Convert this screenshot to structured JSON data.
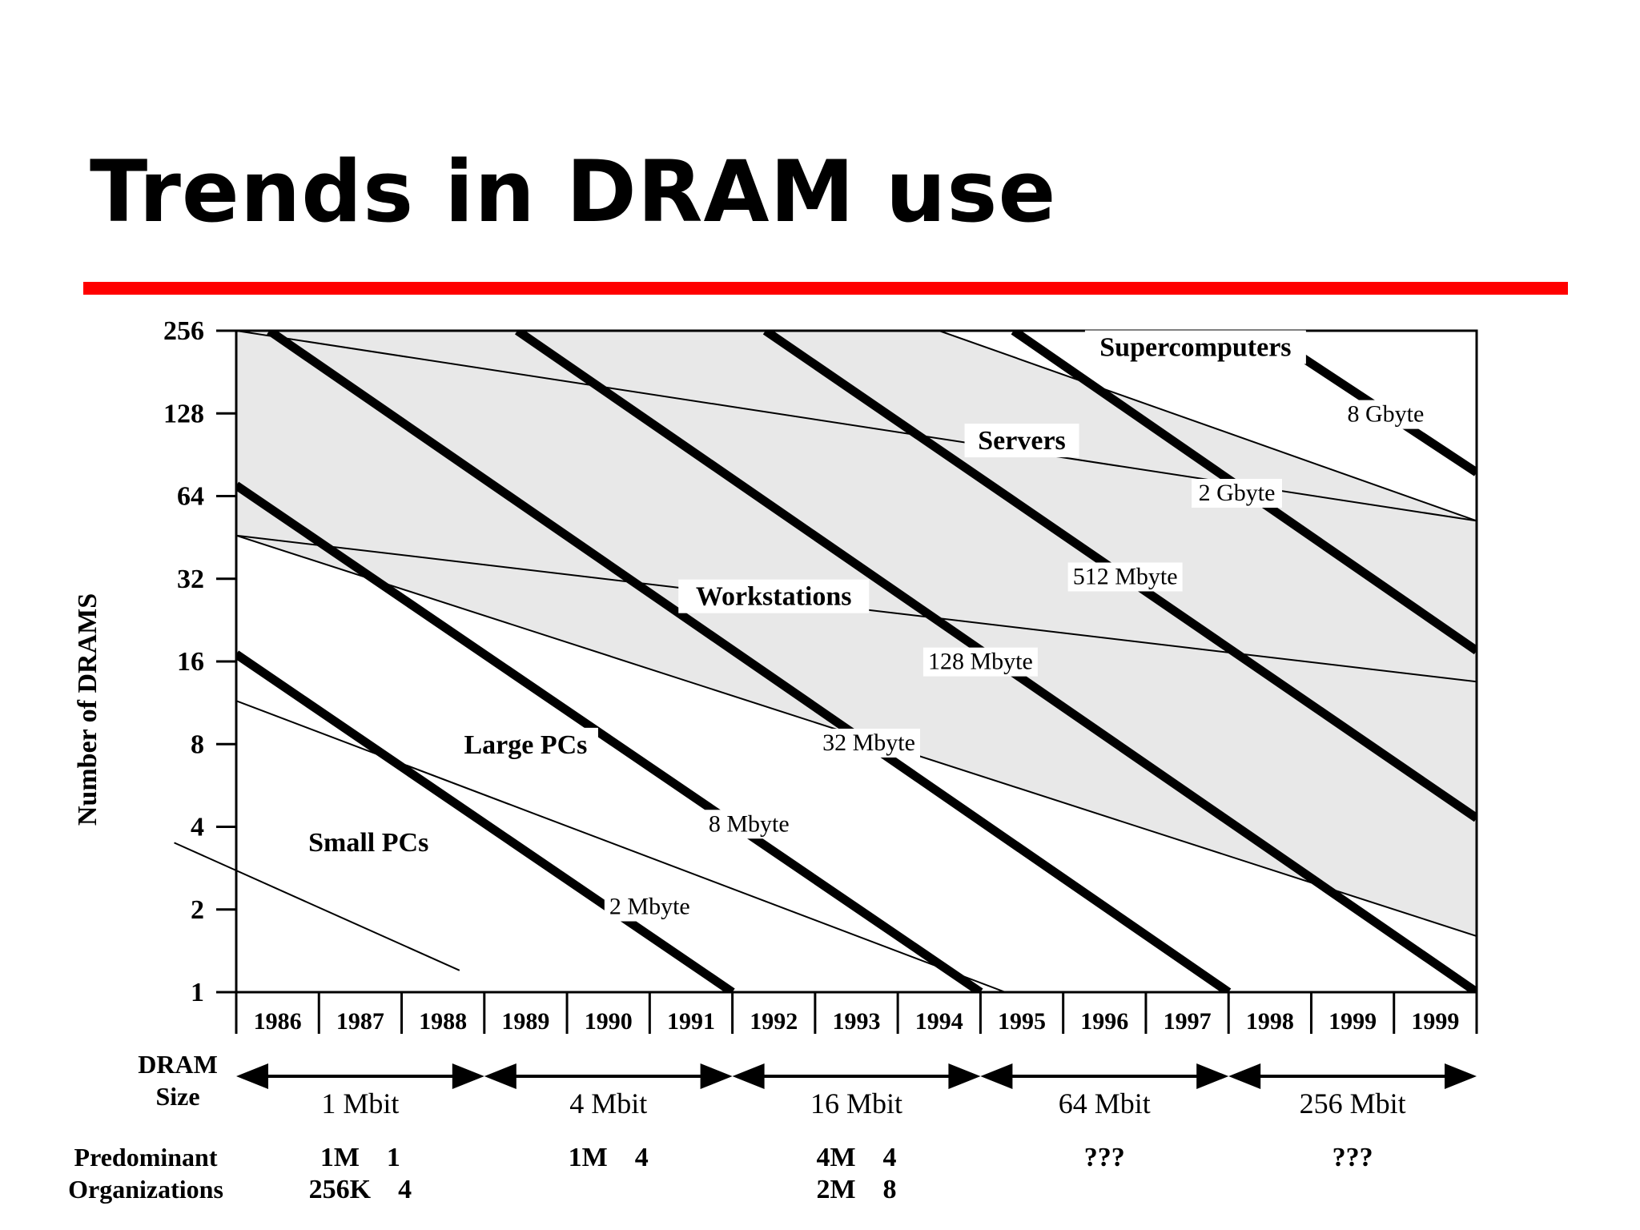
{
  "slide": {
    "title": "Trends in DRAM use",
    "accent_color": "#ff0000"
  },
  "chart_data": {
    "type": "line",
    "ylabel": "Number of DRAMS",
    "yscale": "log2",
    "yticks": [
      "256",
      "128",
      "64",
      "32",
      "16",
      "8",
      "4",
      "2",
      "1"
    ],
    "ylim": [
      1,
      256
    ],
    "year_labels": [
      "1986",
      "1987",
      "1988",
      "1989",
      "1990",
      "1991",
      "1992",
      "1993",
      "1994",
      "1995",
      "1996",
      "1997",
      "1998",
      "1999",
      "1999"
    ],
    "capacity_lines": [
      {
        "label": "2 Mbyte",
        "points": [
          [
            0,
            17
          ],
          [
            6,
            1
          ]
        ]
      },
      {
        "label": "8 Mbyte",
        "points": [
          [
            0,
            70
          ],
          [
            9,
            1
          ]
        ]
      },
      {
        "label": "32 Mbyte",
        "points": [
          [
            0.4,
            256
          ],
          [
            12,
            1
          ]
        ]
      },
      {
        "label": "128 Mbyte",
        "points": [
          [
            3.4,
            256
          ],
          [
            15,
            1
          ]
        ]
      },
      {
        "label": "512 Mbyte",
        "points": [
          [
            6.4,
            256
          ],
          [
            15,
            4.3
          ]
        ]
      },
      {
        "label": "2 Gbyte",
        "points": [
          [
            9.4,
            256
          ],
          [
            15,
            17.5
          ]
        ]
      },
      {
        "label": "8 Gbyte",
        "points": [
          [
            12.4,
            256
          ],
          [
            15,
            78
          ]
        ]
      }
    ],
    "boundary_lines": [
      {
        "points": [
          [
            0,
            256
          ],
          [
            15,
            52
          ]
        ]
      },
      {
        "points": [
          [
            8.5,
            256
          ],
          [
            15,
            52
          ]
        ]
      },
      {
        "points": [
          [
            0,
            46
          ],
          [
            15,
            13.5
          ]
        ]
      },
      {
        "points": [
          [
            0,
            46
          ],
          [
            15,
            1.6
          ]
        ]
      },
      {
        "points": [
          [
            0,
            11.5
          ],
          [
            9.3,
            1
          ]
        ]
      },
      {
        "points": [
          [
            -0.75,
            3.5
          ],
          [
            2.7,
            1.2
          ]
        ]
      }
    ],
    "categories": [
      {
        "name": "Small PCs",
        "x": 1.6,
        "y": 3.3
      },
      {
        "name": "Large PCs",
        "x": 3.5,
        "y": 7.5
      },
      {
        "name": "Workstations",
        "x": 6.5,
        "y": 26
      },
      {
        "name": "Servers",
        "x": 9.5,
        "y": 96
      },
      {
        "name": "Supercomputers",
        "x": 11.6,
        "y": 210
      }
    ],
    "dram_size": {
      "label_line1": "DRAM",
      "label_line2": "Size",
      "segments": [
        {
          "label": "1 Mbit",
          "org_line1": "1M    1",
          "org_line2": "256K    4"
        },
        {
          "label": "4 Mbit",
          "org_line1": "1M    4",
          "org_line2": ""
        },
        {
          "label": "16 Mbit",
          "org_line1": "4M    4",
          "org_line2": "2M    8"
        },
        {
          "label": "64 Mbit",
          "org_line1": "???",
          "org_line2": ""
        },
        {
          "label": "256 Mbit",
          "org_line1": "???",
          "org_line2": ""
        }
      ]
    },
    "organizations_label_line1": "Predominant",
    "organizations_label_line2": "Organizations"
  }
}
